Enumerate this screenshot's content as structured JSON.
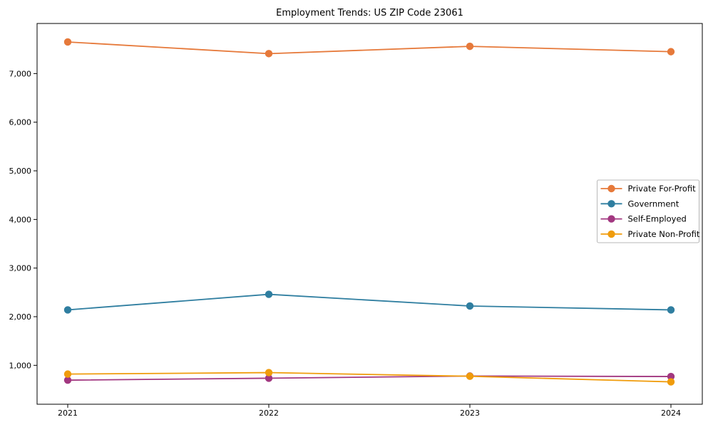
{
  "title": "Employment Trends: US ZIP Code 23061",
  "chart_data": {
    "type": "line",
    "title": "Employment Trends: US ZIP Code 23061",
    "xlabel": "",
    "ylabel": "",
    "categories": [
      "2021",
      "2022",
      "2023",
      "2024"
    ],
    "series": [
      {
        "name": "Private For-Profit",
        "color": "#e6793a",
        "values": [
          7650,
          7410,
          7560,
          7450
        ]
      },
      {
        "name": "Government",
        "color": "#2f7ea0",
        "values": [
          2140,
          2460,
          2220,
          2140
        ]
      },
      {
        "name": "Self-Employed",
        "color": "#a23780",
        "values": [
          695,
          735,
          780,
          770
        ]
      },
      {
        "name": "Private Non-Profit",
        "color": "#f09c0c",
        "values": [
          820,
          850,
          775,
          660
        ]
      }
    ],
    "ylim": [
      200,
      8030
    ],
    "yticks": [
      1000,
      2000,
      3000,
      4000,
      5000,
      6000,
      7000
    ],
    "ytick_labels": [
      "1,000",
      "2,000",
      "3,000",
      "4,000",
      "5,000",
      "6,000",
      "7,000"
    ],
    "grid": false,
    "marker": "circle",
    "legend_position": "center right"
  },
  "colors": {
    "axis": "#000000",
    "legend_border": "#b8b8b8",
    "background": "#ffffff"
  }
}
